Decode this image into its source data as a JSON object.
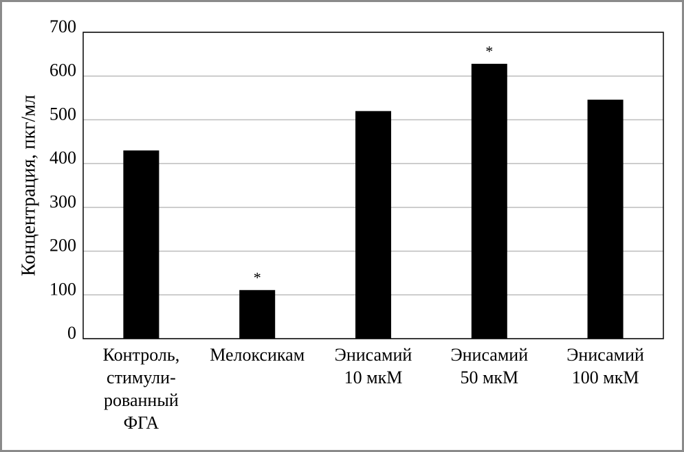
{
  "chart_data": {
    "type": "bar",
    "ylabel": "Концентрация, пкг/мл",
    "categories": [
      [
        "Контроль,",
        "стимули-",
        "рованный",
        "ФГА"
      ],
      [
        "Мелоксикам"
      ],
      [
        "Энисамий",
        "10 мкМ"
      ],
      [
        "Энисамий",
        "50 мкМ"
      ],
      [
        "Энисамий",
        "100 мкМ"
      ]
    ],
    "values": [
      430,
      111,
      520,
      628,
      546
    ],
    "markers": [
      null,
      "*",
      null,
      "*",
      null
    ],
    "color": "#000000",
    "ylim": [
      0,
      700
    ],
    "yticks": [
      0,
      100,
      200,
      300,
      400,
      500,
      600,
      700
    ],
    "grid": true
  }
}
